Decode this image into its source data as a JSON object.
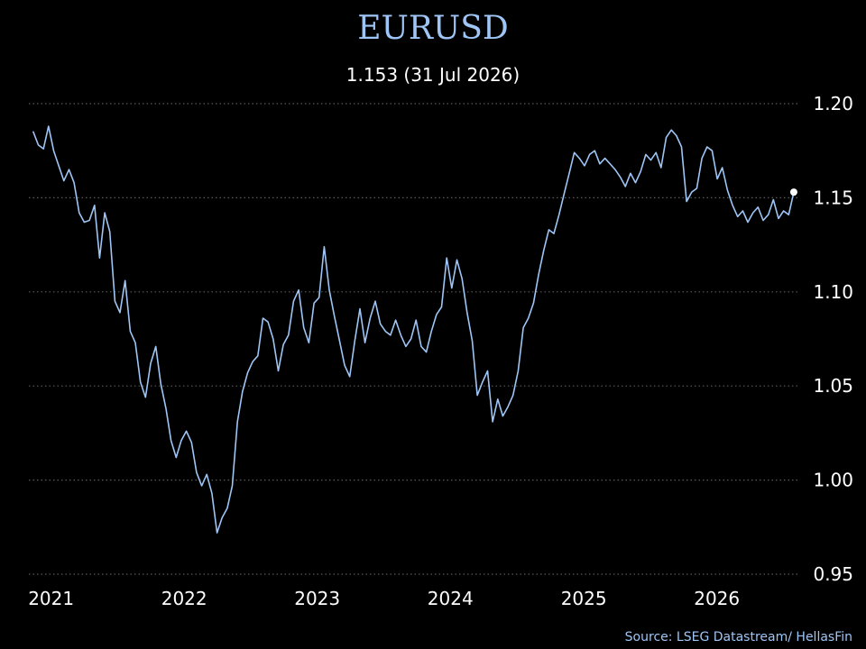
{
  "chart_data": {
    "type": "line",
    "title": "EURUSD",
    "subtitle": "1.153 (31 Jul 2026)",
    "source": "Source: LSEG Datastream/ HellasFin",
    "xlabel": "",
    "ylabel": "",
    "xlim": [
      "2020-11-01",
      "2026-08-10"
    ],
    "ylim": [
      0.95,
      1.2
    ],
    "yticks": [
      {
        "value": 1.2,
        "label": "1.20"
      },
      {
        "value": 1.15,
        "label": "1.15"
      },
      {
        "value": 1.1,
        "label": "1.10"
      },
      {
        "value": 1.05,
        "label": "1.05"
      },
      {
        "value": 1.0,
        "label": "1.00"
      },
      {
        "value": 0.95,
        "label": "0.95"
      }
    ],
    "xticks": [
      {
        "date": "2021-01-01",
        "label": "2021"
      },
      {
        "date": "2022-01-01",
        "label": "2022"
      },
      {
        "date": "2023-01-01",
        "label": "2023"
      },
      {
        "date": "2024-01-01",
        "label": "2024"
      },
      {
        "date": "2025-01-01",
        "label": "2025"
      },
      {
        "date": "2026-01-01",
        "label": "2026"
      }
    ],
    "grid": true,
    "y_axis_side": "right",
    "last_point_marker": true,
    "colors": {
      "background": "#000000",
      "line": "#9ec5f5",
      "title": "#9ec5f5",
      "text": "#ffffff",
      "grid": "#5a5a5a",
      "marker": "#ffffff"
    },
    "series": [
      {
        "x": [
          "2020-11-13",
          "2020-11-27",
          "2020-12-11",
          "2020-12-25",
          "2021-01-08",
          "2021-01-22",
          "2021-02-05",
          "2021-02-19",
          "2021-03-05",
          "2021-03-19",
          "2021-04-02",
          "2021-04-16",
          "2021-04-30",
          "2021-05-14",
          "2021-05-28",
          "2021-06-11",
          "2021-06-25",
          "2021-07-09",
          "2021-07-23",
          "2021-08-06",
          "2021-08-20",
          "2021-09-03",
          "2021-09-17",
          "2021-10-01",
          "2021-10-15",
          "2021-10-29",
          "2021-11-12",
          "2021-11-26",
          "2021-12-10",
          "2021-12-24",
          "2022-01-07",
          "2022-01-21",
          "2022-02-04",
          "2022-02-18",
          "2022-03-04",
          "2022-03-18",
          "2022-04-01",
          "2022-04-15",
          "2022-04-29",
          "2022-05-13",
          "2022-05-27",
          "2022-06-10",
          "2022-06-24",
          "2022-07-08",
          "2022-07-22",
          "2022-08-05",
          "2022-08-19",
          "2022-09-02",
          "2022-09-16",
          "2022-09-30",
          "2022-10-14",
          "2022-10-28",
          "2022-11-11",
          "2022-11-25",
          "2022-12-09",
          "2022-12-23",
          "2023-01-06",
          "2023-01-20",
          "2023-02-03",
          "2023-02-17",
          "2023-03-03",
          "2023-03-17",
          "2023-03-31",
          "2023-04-14",
          "2023-04-28",
          "2023-05-12",
          "2023-05-26",
          "2023-06-09",
          "2023-06-23",
          "2023-07-07",
          "2023-07-21",
          "2023-08-04",
          "2023-08-18",
          "2023-09-01",
          "2023-09-15",
          "2023-09-29",
          "2023-10-13",
          "2023-10-27",
          "2023-11-10",
          "2023-11-24",
          "2023-12-08",
          "2023-12-22",
          "2024-01-05",
          "2024-01-19",
          "2024-02-02",
          "2024-02-16",
          "2024-03-01",
          "2024-03-15",
          "2024-03-29",
          "2024-04-12",
          "2024-04-26",
          "2024-05-10",
          "2024-05-24",
          "2024-06-07",
          "2024-06-21",
          "2024-07-05",
          "2024-07-19",
          "2024-08-02",
          "2024-08-16",
          "2024-08-30",
          "2024-09-13",
          "2024-09-27",
          "2024-10-11",
          "2024-10-25",
          "2024-11-08",
          "2024-11-22",
          "2024-12-06",
          "2024-12-20",
          "2025-01-03",
          "2025-01-17",
          "2025-01-31",
          "2025-02-14",
          "2025-02-28",
          "2025-03-14",
          "2025-03-28",
          "2025-04-11",
          "2025-04-25",
          "2025-05-09",
          "2025-05-23",
          "2025-06-06",
          "2025-06-20",
          "2025-07-04",
          "2025-07-18",
          "2025-08-01",
          "2025-08-15",
          "2025-08-29",
          "2025-09-12",
          "2025-09-26",
          "2025-10-10",
          "2025-10-24",
          "2025-11-07",
          "2025-11-21",
          "2025-12-05",
          "2025-12-19",
          "2026-01-02",
          "2026-01-16",
          "2026-01-30",
          "2026-02-13",
          "2026-02-27",
          "2026-03-13",
          "2026-03-27",
          "2026-04-10",
          "2026-04-24",
          "2026-05-08",
          "2026-05-22",
          "2026-06-05",
          "2026-06-19",
          "2026-07-03",
          "2026-07-17",
          "2026-07-31"
        ],
        "y": [
          1.185,
          1.178,
          1.176,
          1.188,
          1.175,
          1.167,
          1.159,
          1.165,
          1.158,
          1.142,
          1.137,
          1.138,
          1.146,
          1.118,
          1.142,
          1.132,
          1.095,
          1.089,
          1.106,
          1.079,
          1.073,
          1.052,
          1.044,
          1.062,
          1.071,
          1.051,
          1.038,
          1.021,
          1.012,
          1.021,
          1.026,
          1.02,
          1.004,
          0.997,
          1.003,
          0.993,
          0.972,
          0.98,
          0.985,
          0.997,
          1.031,
          1.047,
          1.057,
          1.063,
          1.066,
          1.086,
          1.084,
          1.075,
          1.058,
          1.072,
          1.077,
          1.095,
          1.101,
          1.081,
          1.073,
          1.094,
          1.097,
          1.124,
          1.101,
          1.087,
          1.074,
          1.061,
          1.055,
          1.074,
          1.091,
          1.073,
          1.086,
          1.095,
          1.083,
          1.079,
          1.077,
          1.085,
          1.077,
          1.071,
          1.075,
          1.085,
          1.071,
          1.068,
          1.079,
          1.088,
          1.092,
          1.118,
          1.102,
          1.117,
          1.107,
          1.089,
          1.074,
          1.045,
          1.052,
          1.058,
          1.031,
          1.043,
          1.034,
          1.039,
          1.045,
          1.058,
          1.081,
          1.086,
          1.094,
          1.109,
          1.122,
          1.133,
          1.131,
          1.141,
          1.152,
          1.163,
          1.174,
          1.171,
          1.167,
          1.173,
          1.175,
          1.168,
          1.171,
          1.168,
          1.165,
          1.161,
          1.156,
          1.163,
          1.158,
          1.164,
          1.173,
          1.17,
          1.174,
          1.166,
          1.182,
          1.186,
          1.183,
          1.177,
          1.148,
          1.153,
          1.155,
          1.171,
          1.177,
          1.175,
          1.16,
          1.166,
          1.154,
          1.146,
          1.14,
          1.143,
          1.137,
          1.142,
          1.145,
          1.138,
          1.141,
          1.149,
          1.139,
          1.143,
          1.141,
          1.153
        ]
      }
    ]
  }
}
